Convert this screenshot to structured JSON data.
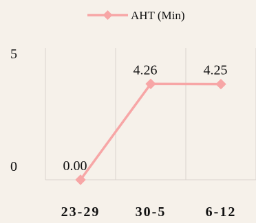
{
  "chart_data": {
    "type": "line",
    "categories": [
      "23-29",
      "30-5",
      "6-12"
    ],
    "series": [
      {
        "name": "AHT (Min)",
        "values": [
          0.0,
          4.26,
          4.25
        ],
        "data_labels": [
          "0.00",
          "4.26",
          "4.25"
        ],
        "color": "#f7a6a6"
      }
    ],
    "y_ticks": [
      "0",
      "5"
    ],
    "ylim": [
      0,
      5
    ],
    "grid": "vertical",
    "legend_position": "top-center",
    "background": "#f6f1ea",
    "marker": "diamond"
  }
}
